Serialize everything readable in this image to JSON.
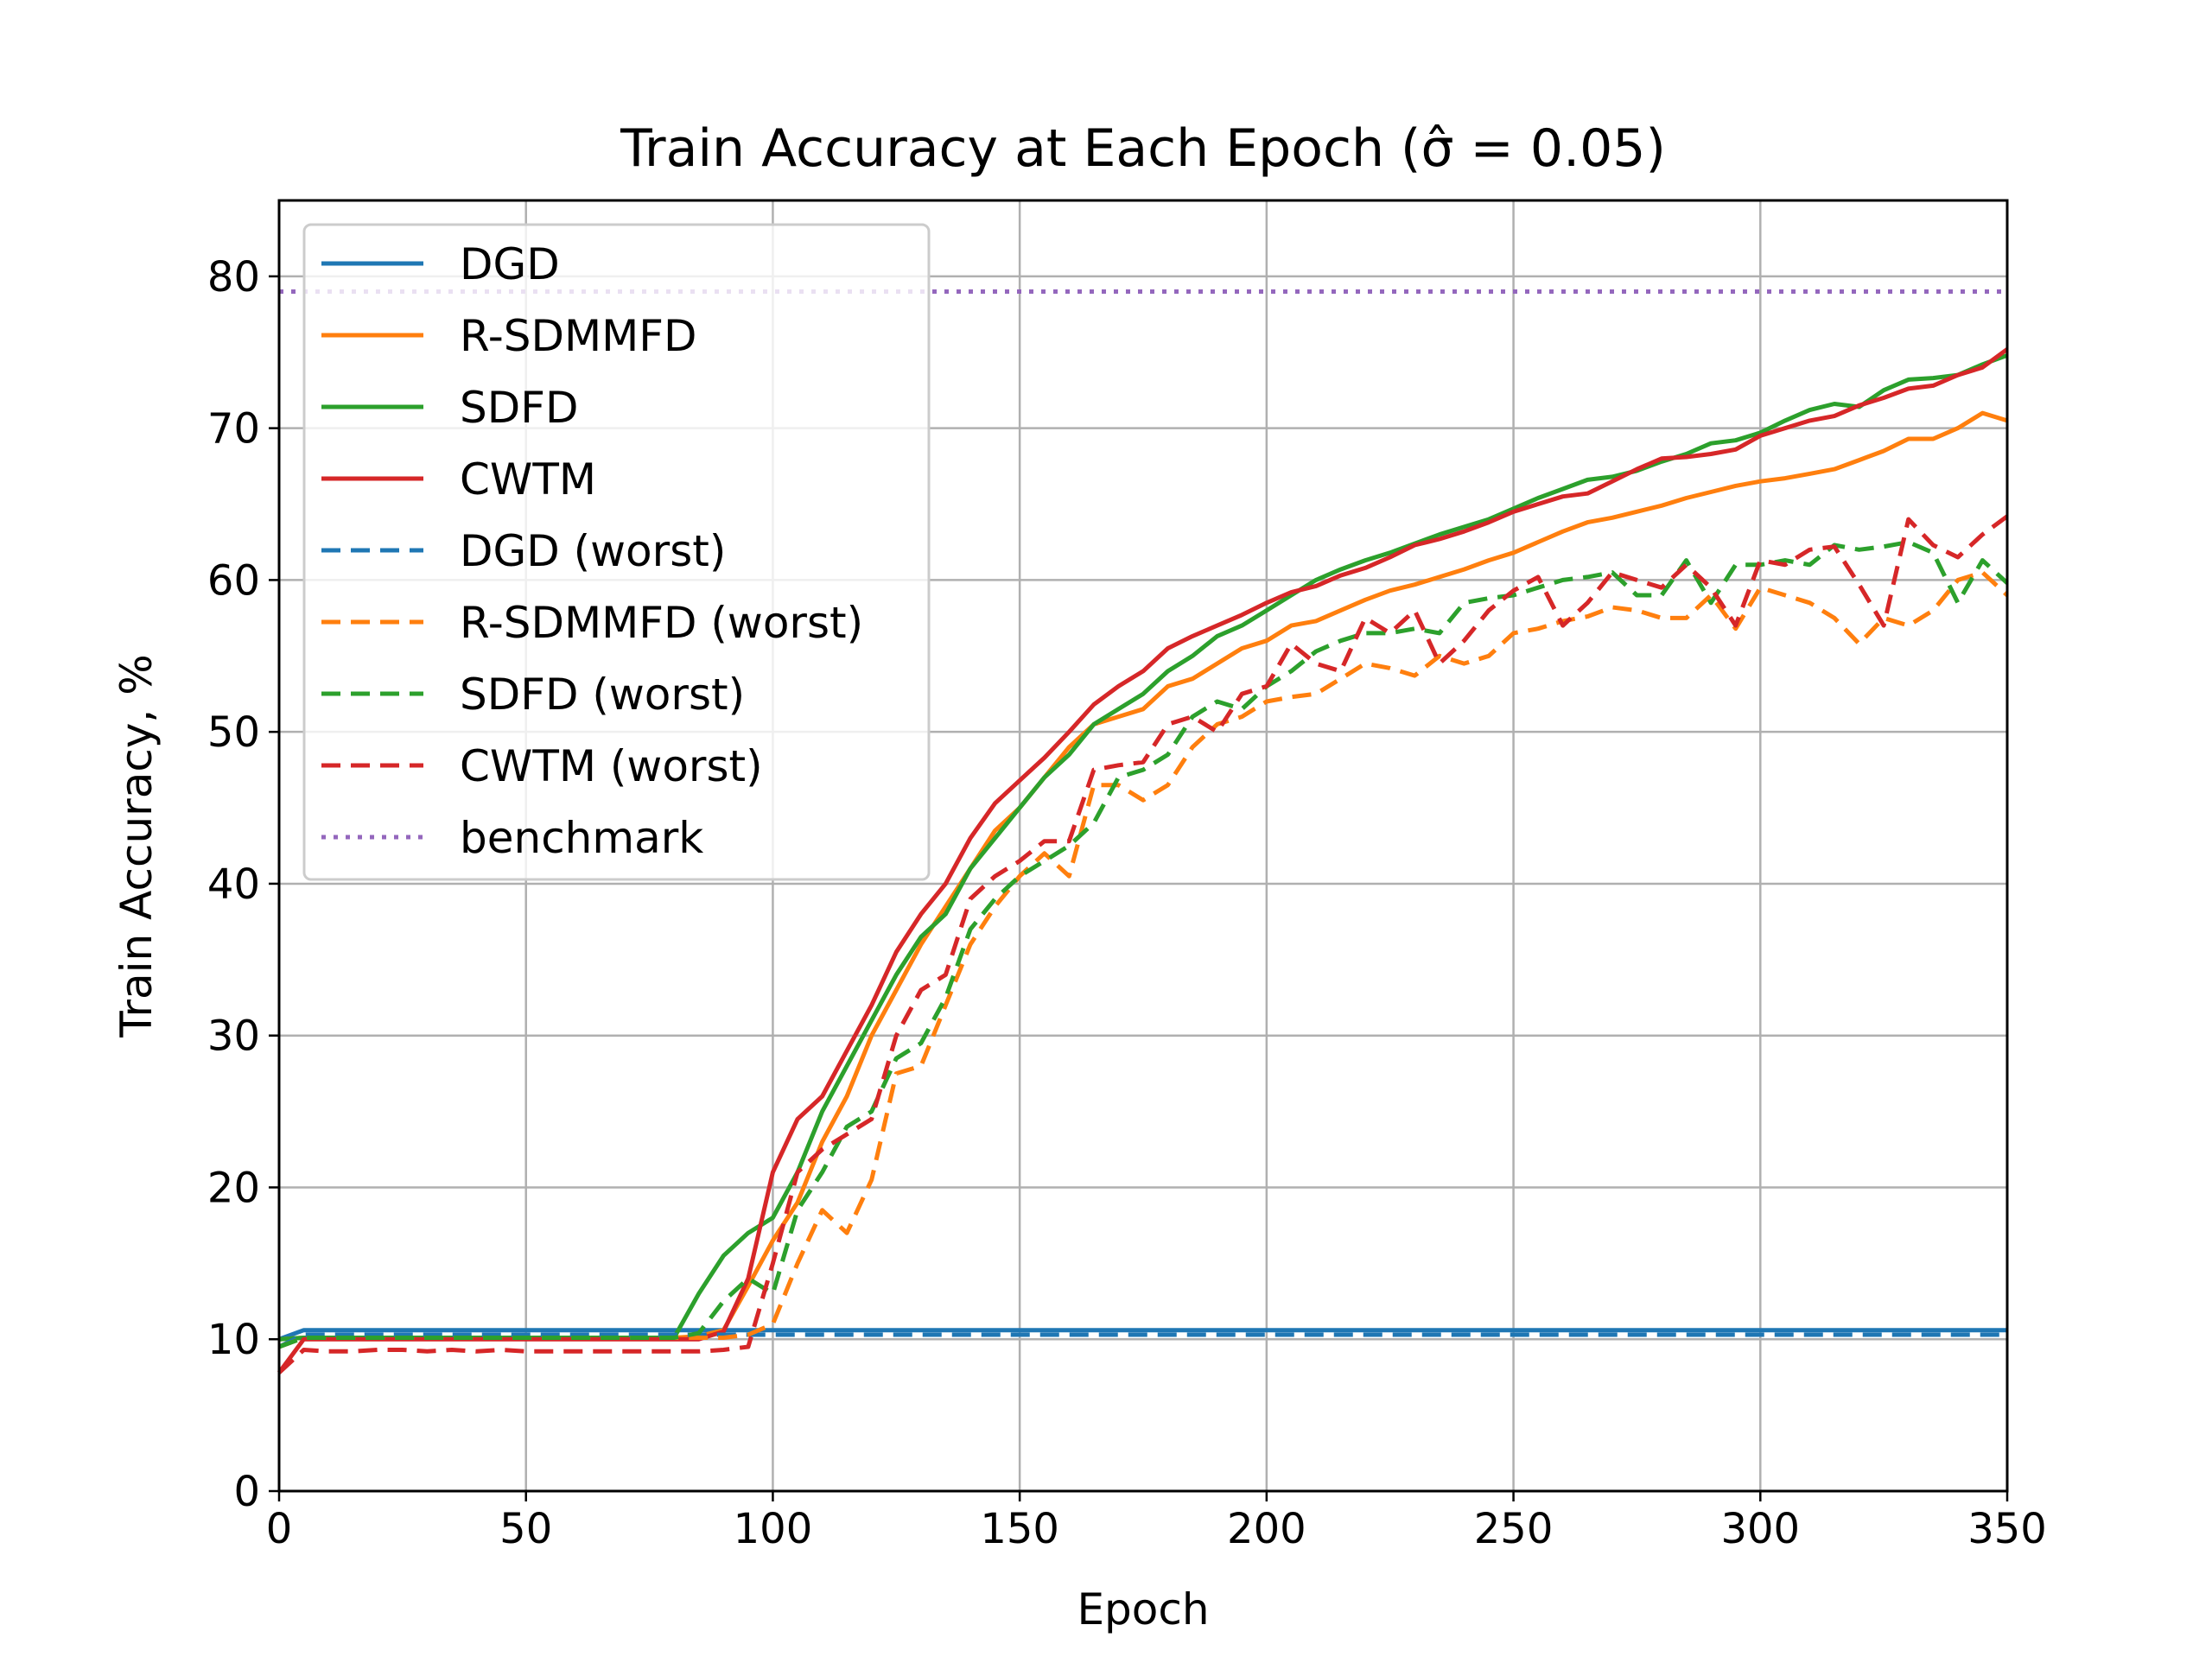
{
  "chart_data": {
    "type": "line",
    "title": "Train Accuracy at Each Epoch (σ̂ = 0.05)",
    "xlabel": "Epoch",
    "ylabel": "Train Accuracy, %",
    "xlim": [
      0,
      350
    ],
    "ylim": [
      0,
      85
    ],
    "xticks": [
      0,
      50,
      100,
      150,
      200,
      250,
      300,
      350
    ],
    "yticks": [
      0,
      10,
      20,
      30,
      40,
      50,
      60,
      70,
      80
    ],
    "grid": true,
    "legend_position": "top-left",
    "x": [
      0,
      5,
      10,
      15,
      20,
      25,
      30,
      35,
      40,
      45,
      50,
      55,
      60,
      65,
      70,
      75,
      80,
      85,
      90,
      95,
      100,
      105,
      110,
      115,
      120,
      125,
      130,
      135,
      140,
      145,
      150,
      155,
      160,
      165,
      170,
      175,
      180,
      185,
      190,
      195,
      200,
      205,
      210,
      215,
      220,
      225,
      230,
      235,
      240,
      245,
      250,
      255,
      260,
      265,
      270,
      275,
      280,
      285,
      290,
      295,
      300,
      305,
      310,
      315,
      320,
      325,
      330,
      335,
      340,
      345,
      350
    ],
    "series": [
      {
        "name": "DGD",
        "color": "#1f77b4",
        "dash": "solid",
        "values": [
          10,
          10.6,
          10.6,
          10.6,
          10.6,
          10.6,
          10.6,
          10.6,
          10.6,
          10.6,
          10.6,
          10.6,
          10.6,
          10.6,
          10.6,
          10.6,
          10.6,
          10.6,
          10.6,
          10.6,
          10.6,
          10.6,
          10.6,
          10.6,
          10.6,
          10.6,
          10.6,
          10.6,
          10.6,
          10.6,
          10.6,
          10.6,
          10.6,
          10.6,
          10.6,
          10.6,
          10.6,
          10.6,
          10.6,
          10.6,
          10.6,
          10.6,
          10.6,
          10.6,
          10.6,
          10.6,
          10.6,
          10.6,
          10.6,
          10.6,
          10.6,
          10.6,
          10.6,
          10.6,
          10.6,
          10.6,
          10.6,
          10.6,
          10.6,
          10.6,
          10.6,
          10.6,
          10.6,
          10.6,
          10.6,
          10.6,
          10.6,
          10.6,
          10.6,
          10.6,
          10.6
        ]
      },
      {
        "name": "R-SDMMFD",
        "color": "#ff7f0e",
        "dash": "solid",
        "values": [
          10,
          10.1,
          10.1,
          10.1,
          10.1,
          10.1,
          10.1,
          10.1,
          10.1,
          10.1,
          10.1,
          10.1,
          10.1,
          10.1,
          10.1,
          10.1,
          10.1,
          10.2,
          10.6,
          13.5,
          16.5,
          19,
          23,
          26,
          30,
          33,
          36,
          38.5,
          41,
          43.5,
          45,
          47,
          49,
          50.5,
          51,
          51.5,
          53,
          53.5,
          54.5,
          55.5,
          56,
          57,
          57.3,
          58,
          58.7,
          59.3,
          59.7,
          60.2,
          60.7,
          61.3,
          61.8,
          62.5,
          63.2,
          63.8,
          64.1,
          64.5,
          64.9,
          65.4,
          65.8,
          66.2,
          66.5,
          66.7,
          67,
          67.3,
          67.9,
          68.5,
          69.3,
          69.3,
          70,
          71,
          70.5
        ]
      },
      {
        "name": "SDFD",
        "color": "#2ca02c",
        "dash": "solid",
        "values": [
          10,
          10.1,
          10.1,
          10.1,
          10.1,
          10.1,
          10.1,
          10.1,
          10.1,
          10.1,
          10.1,
          10.1,
          10.1,
          10.1,
          10.1,
          10.1,
          10.1,
          13,
          15.5,
          17,
          18,
          21,
          25,
          28,
          31,
          34,
          36.5,
          38,
          41,
          43,
          45,
          47,
          48.5,
          50.5,
          51.5,
          52.5,
          54,
          55,
          56.3,
          57,
          58,
          59,
          60,
          60.7,
          61.3,
          61.8,
          62.4,
          63,
          63.5,
          64,
          64.7,
          65.4,
          66,
          66.6,
          66.8,
          67.2,
          67.8,
          68.3,
          69,
          69.2,
          69.7,
          70.5,
          71.2,
          71.6,
          71.4,
          72.5,
          73.2,
          73.3,
          73.5,
          74.2,
          74.8
        ]
      },
      {
        "name": "CWTM",
        "color": "#d62728",
        "dash": "solid",
        "values": [
          7.8,
          10,
          10,
          10,
          10,
          10,
          10,
          10,
          10,
          10,
          10,
          10,
          10,
          10,
          10,
          10,
          10,
          10,
          10.5,
          14,
          21,
          24.5,
          26,
          29,
          32,
          35.5,
          38,
          40,
          43,
          45.3,
          46.8,
          48.3,
          50,
          51.8,
          53,
          54,
          55.5,
          56.3,
          57,
          57.7,
          58.5,
          59.2,
          59.6,
          60.3,
          60.8,
          61.5,
          62.3,
          62.7,
          63.2,
          63.8,
          64.5,
          65,
          65.5,
          65.7,
          66.5,
          67.3,
          68,
          68.1,
          68.3,
          68.6,
          69.5,
          70,
          70.5,
          70.8,
          71.5,
          72,
          72.6,
          72.8,
          73.5,
          74,
          75.2
        ]
      },
      {
        "name": "DGD (worst)",
        "color": "#1f77b4",
        "dash": "dashed",
        "values": [
          9.5,
          10.3,
          10.3,
          10.3,
          10.3,
          10.3,
          10.3,
          10.3,
          10.3,
          10.3,
          10.3,
          10.3,
          10.3,
          10.3,
          10.3,
          10.3,
          10.3,
          10.3,
          10.3,
          10.3,
          10.3,
          10.3,
          10.3,
          10.3,
          10.3,
          10.3,
          10.3,
          10.3,
          10.3,
          10.3,
          10.3,
          10.3,
          10.3,
          10.3,
          10.3,
          10.3,
          10.3,
          10.3,
          10.3,
          10.3,
          10.3,
          10.3,
          10.3,
          10.3,
          10.3,
          10.3,
          10.3,
          10.3,
          10.3,
          10.3,
          10.3,
          10.3,
          10.3,
          10.3,
          10.3,
          10.3,
          10.3,
          10.3,
          10.3,
          10.3,
          10.3,
          10.3,
          10.3,
          10.3,
          10.3,
          10.3,
          10.3,
          10.3,
          10.3,
          10.3,
          10.3
        ]
      },
      {
        "name": "R-SDMMFD (worst)",
        "color": "#ff7f0e",
        "dash": "dashed",
        "values": [
          9.5,
          10.1,
          10.1,
          10.1,
          10.1,
          10.1,
          10.1,
          10.1,
          10.1,
          10.1,
          10.1,
          10.1,
          10.1,
          10.1,
          10.1,
          10.1,
          10.1,
          10.1,
          10.1,
          10.3,
          11,
          15,
          18.5,
          17,
          20.5,
          27.5,
          28,
          32,
          36,
          38.5,
          40.5,
          42,
          40.5,
          46.5,
          46.5,
          45.5,
          46.5,
          49,
          50.5,
          51,
          52,
          52.3,
          52.5,
          53.5,
          54.5,
          54.2,
          53.7,
          55,
          54.5,
          55,
          56.5,
          56.8,
          57.3,
          57.6,
          58.2,
          58,
          57.5,
          57.5,
          59,
          56.8,
          59.5,
          59,
          58.5,
          57.5,
          55.8,
          57.5,
          57,
          58,
          60,
          60.5,
          59
        ]
      },
      {
        "name": "SDFD (worst)",
        "color": "#2ca02c",
        "dash": "dashed",
        "values": [
          9.5,
          10.1,
          10.1,
          10.1,
          10.1,
          10.1,
          10.1,
          10.1,
          10.1,
          10.1,
          10.1,
          10.1,
          10.1,
          10.1,
          10.1,
          10.1,
          10.1,
          10.4,
          12.5,
          14,
          13,
          18.5,
          21,
          24,
          25,
          28.5,
          29.5,
          32.5,
          37,
          39,
          40.5,
          41.5,
          42.5,
          44,
          47,
          47.5,
          48.5,
          51,
          52,
          51.5,
          53,
          54,
          55.3,
          56,
          56.5,
          56.5,
          56.8,
          56.5,
          58.5,
          58.8,
          59,
          59.5,
          60,
          60.2,
          60.5,
          59,
          59,
          61.3,
          58.5,
          61,
          61,
          61.3,
          61,
          62.3,
          62,
          62.2,
          62.5,
          61.8,
          58.5,
          61.3,
          59.8
        ]
      },
      {
        "name": "CWTM (worst)",
        "color": "#d62728",
        "dash": "dashed",
        "values": [
          7.8,
          9.3,
          9.2,
          9.2,
          9.3,
          9.3,
          9.2,
          9.3,
          9.2,
          9.3,
          9.2,
          9.2,
          9.2,
          9.2,
          9.2,
          9.2,
          9.2,
          9.2,
          9.3,
          9.5,
          15,
          21,
          22.5,
          23.5,
          24.5,
          30,
          33,
          34,
          39,
          40.5,
          41.5,
          42.8,
          42.8,
          47.5,
          47.8,
          48,
          50.5,
          51,
          50,
          52.5,
          53,
          55.8,
          54.5,
          54,
          57.5,
          56.5,
          58,
          54.5,
          56,
          58,
          59.3,
          60.2,
          57,
          58.5,
          60.5,
          60,
          59.5,
          61,
          59.5,
          57,
          61.3,
          61,
          62,
          62.2,
          59.7,
          57,
          64,
          62.3,
          61.5,
          63,
          64.2
        ]
      },
      {
        "name": "benchmark",
        "color": "#9467bd",
        "dash": "dotted",
        "values": [
          79,
          79,
          79,
          79,
          79,
          79,
          79,
          79,
          79,
          79,
          79,
          79,
          79,
          79,
          79,
          79,
          79,
          79,
          79,
          79,
          79,
          79,
          79,
          79,
          79,
          79,
          79,
          79,
          79,
          79,
          79,
          79,
          79,
          79,
          79,
          79,
          79,
          79,
          79,
          79,
          79,
          79,
          79,
          79,
          79,
          79,
          79,
          79,
          79,
          79,
          79,
          79,
          79,
          79,
          79,
          79,
          79,
          79,
          79,
          79,
          79,
          79,
          79,
          79,
          79,
          79,
          79,
          79,
          79,
          79,
          79
        ]
      }
    ]
  }
}
